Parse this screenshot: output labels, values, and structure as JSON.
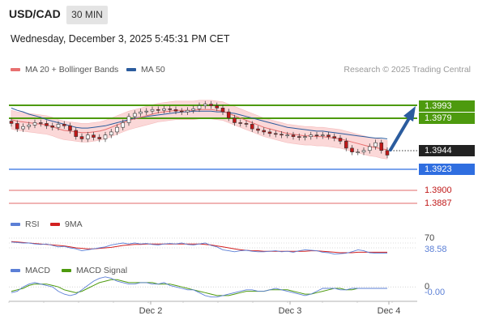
{
  "header": {
    "symbol": "USD/CAD",
    "timeframe": "30 MIN",
    "datetime": "Wednesday, December 3, 2025 5:45:31 PM CET"
  },
  "legend": {
    "ma20_label": "MA 20 + Bollinger Bands",
    "ma50_label": "MA 50",
    "credit": "Research © 2025 Trading Central"
  },
  "levels": {
    "resistance_2": "1.3993",
    "resistance_1": "1.3979",
    "last": "1.3944",
    "support_1": "1.3923",
    "support_2": "1.3900",
    "support_3": "1.3887"
  },
  "rsi": {
    "label": "RSI",
    "ma_label": "9MA",
    "level": "70",
    "value": "38.58"
  },
  "macd": {
    "label": "MACD",
    "signal_label": "MACD Signal",
    "zero": "0",
    "value": "-0.00"
  },
  "x_axis": {
    "ticks": [
      "Dec 2",
      "Dec 3",
      "Dec 4"
    ]
  },
  "colors": {
    "up_candle": "#ffffff",
    "down_candle": "#c01818",
    "ma20": "#e87070",
    "ma50": "#2b5c9e",
    "bollinger_fill": "#fbd8d8",
    "resistance": "#4d9a0e",
    "support": "#2f6ee0",
    "support_red": "#e06a6a",
    "forecast_arrow": "#2b5c9e",
    "rsi_line": "#5b7fd6",
    "rsi_ma": "#d22020",
    "macd_line": "#5b7fd6",
    "macd_signal": "#4d9a0e"
  },
  "chart_data": {
    "type": "candlestick",
    "title": "USD/CAD",
    "timeframe": "30 MIN",
    "y_range": [
      1.387,
      1.404
    ],
    "x_ticks": [
      "Dec 2",
      "Dec 3",
      "Dec 4"
    ],
    "close_series": [
      1.3985,
      1.3978,
      1.3981,
      1.3983,
      1.3986,
      1.3985,
      1.3982,
      1.398,
      1.3984,
      1.3982,
      1.3976,
      1.3968,
      1.3965,
      1.397,
      1.3967,
      1.3965,
      1.397,
      1.3974,
      1.398,
      1.3986,
      1.3994,
      1.3998,
      1.4,
      1.4001,
      1.4003,
      1.4002,
      1.4004,
      1.4003,
      1.4001,
      1.4,
      1.4002,
      1.4004,
      1.4008,
      1.401,
      1.4008,
      1.4005,
      1.4,
      1.3992,
      1.3986,
      1.3985,
      1.3984,
      1.3978,
      1.3976,
      1.3974,
      1.3972,
      1.3971,
      1.397,
      1.397,
      1.3968,
      1.3967,
      1.3968,
      1.397,
      1.3969,
      1.397,
      1.3968,
      1.3966,
      1.3962,
      1.3953,
      1.3948,
      1.3948,
      1.395,
      1.3955,
      1.396,
      1.395,
      1.3944
    ],
    "ma20": [
      1.399,
      1.3988,
      1.3987,
      1.3986,
      1.3985,
      1.3984,
      1.3983,
      1.3981,
      1.3978,
      1.3976,
      1.3975,
      1.3974,
      1.3973,
      1.3973,
      1.3974,
      1.3975,
      1.3977,
      1.398,
      1.3983,
      1.3986,
      1.3989,
      1.3991,
      1.3993,
      1.3995,
      1.3997,
      1.3999,
      1.4,
      1.4001,
      1.4002,
      1.4002,
      1.4002,
      1.4002,
      1.4003,
      1.4003,
      1.4003,
      1.4002,
      1.4001,
      1.3998,
      1.3995,
      1.3992,
      1.3989,
      1.3986,
      1.3983,
      1.398,
      1.3978,
      1.3976,
      1.3974,
      1.3972,
      1.3971,
      1.397,
      1.3969,
      1.3969,
      1.3968,
      1.3968,
      1.3967,
      1.3966,
      1.3965,
      1.3963,
      1.3961,
      1.3959,
      1.3957,
      1.3955,
      1.3954,
      1.3952,
      1.3951
    ],
    "ma50": [
      1.4005,
      1.4002,
      1.4,
      1.3997,
      1.3995,
      1.3993,
      1.399,
      1.3988,
      1.3986,
      1.3984,
      1.3982,
      1.398,
      1.3979,
      1.3979,
      1.398,
      1.3981,
      1.3982,
      1.3984,
      1.3986,
      1.3988,
      1.399,
      1.3992,
      1.3993,
      1.3994,
      1.3995,
      1.3996,
      1.3997,
      1.3998,
      1.3999,
      1.4,
      1.4,
      1.4001,
      1.4001,
      1.4001,
      1.4001,
      1.4,
      1.4,
      1.3999,
      1.3998,
      1.3996,
      1.3994,
      1.3992,
      1.399,
      1.3988,
      1.3986,
      1.3984,
      1.3982,
      1.398,
      1.3979,
      1.3978,
      1.3977,
      1.3976,
      1.3975,
      1.3975,
      1.3974,
      1.3973,
      1.3972,
      1.3971,
      1.397,
      1.3969,
      1.3968,
      1.3967,
      1.3966,
      1.3966,
      1.3965
    ],
    "levels": [
      1.3993,
      1.3979,
      1.3944,
      1.3923,
      1.39,
      1.3887
    ],
    "forecast": {
      "from": 1.3944,
      "to": 1.3979
    },
    "rsi": {
      "level": 70,
      "last": 38.58,
      "range": [
        30,
        80
      ],
      "values": [
        62,
        61,
        60,
        60,
        58,
        57,
        58,
        55,
        52,
        53,
        50,
        48,
        44,
        46,
        48,
        50,
        52,
        56,
        58,
        60,
        58,
        60,
        58,
        59,
        57,
        56,
        58,
        59,
        58,
        60,
        57,
        56,
        58,
        60,
        55,
        52,
        46,
        44,
        42,
        44,
        45,
        43,
        42,
        42,
        43,
        44,
        42,
        43,
        41,
        44,
        46,
        45,
        44,
        41,
        40,
        37,
        38,
        39,
        42,
        46,
        44,
        40,
        39,
        39,
        39
      ],
      "ma": [
        63,
        62,
        61,
        60,
        59,
        58,
        57,
        56,
        55,
        54,
        52,
        50,
        49,
        48,
        48,
        49,
        50,
        51,
        53,
        55,
        56,
        57,
        57,
        58,
        58,
        58,
        58,
        58,
        58,
        58,
        58,
        58,
        58,
        57,
        56,
        54,
        52,
        50,
        48,
        46,
        45,
        44,
        44,
        43,
        43,
        43,
        43,
        43,
        43,
        43,
        43,
        44,
        44,
        43,
        42,
        41,
        40,
        40,
        40,
        41,
        41,
        41,
        41,
        41,
        41
      ]
    },
    "macd": {
      "zero": 0,
      "last": -0.0,
      "range": [
        -0.001,
        0.0008
      ],
      "macd": [
        -0.0004,
        -0.0003,
        0.0,
        0.0002,
        0.0003,
        0.0002,
        0.0001,
        0.0,
        -0.0003,
        -0.0005,
        -0.0006,
        -0.0005,
        -0.0002,
        0.0001,
        0.0004,
        0.0006,
        0.0007,
        0.0006,
        0.0004,
        0.0003,
        0.0002,
        0.0002,
        0.0003,
        0.0003,
        0.0002,
        0.0002,
        0.0003,
        0.0001,
        0.0,
        -0.0001,
        -0.0002,
        -0.0002,
        -0.0004,
        -0.0006,
        -0.0007,
        -0.0007,
        -0.0006,
        -0.0005,
        -0.0004,
        -0.0003,
        -0.0002,
        -0.0002,
        -0.0003,
        -0.0003,
        -0.0002,
        -0.0001,
        -0.0002,
        -0.0003,
        -0.0004,
        -0.0005,
        -0.0006,
        -0.0005,
        -0.0003,
        -0.0001,
        -0.0001,
        -0.0001,
        -0.0002,
        -0.0002,
        -0.0001,
        -0.0001,
        -0.0001,
        -0.0001,
        -0.0001,
        -0.0001,
        -0.0001
      ],
      "signal": [
        -0.0003,
        -0.0002,
        -0.0001,
        0.0001,
        0.0002,
        0.0002,
        0.0002,
        0.0001,
        0.0,
        -0.0002,
        -0.0003,
        -0.0004,
        -0.0003,
        -0.0001,
        0.0001,
        0.0003,
        0.0004,
        0.0005,
        0.0005,
        0.0004,
        0.0003,
        0.0003,
        0.0003,
        0.0003,
        0.0003,
        0.0002,
        0.0002,
        0.0002,
        0.0001,
        0.0,
        -0.0001,
        -0.0002,
        -0.0003,
        -0.0004,
        -0.0005,
        -0.0006,
        -0.0006,
        -0.0006,
        -0.0005,
        -0.0004,
        -0.0003,
        -0.0003,
        -0.0003,
        -0.0003,
        -0.0002,
        -0.0002,
        -0.0002,
        -0.0002,
        -0.0003,
        -0.0004,
        -0.0005,
        -0.0005,
        -0.0004,
        -0.0003,
        -0.0002,
        -0.0001,
        -0.0001,
        -0.0002,
        -0.0002,
        -0.0001,
        -0.0001,
        -0.0001,
        -0.0001,
        -0.0001,
        -0.0001
      ]
    }
  }
}
